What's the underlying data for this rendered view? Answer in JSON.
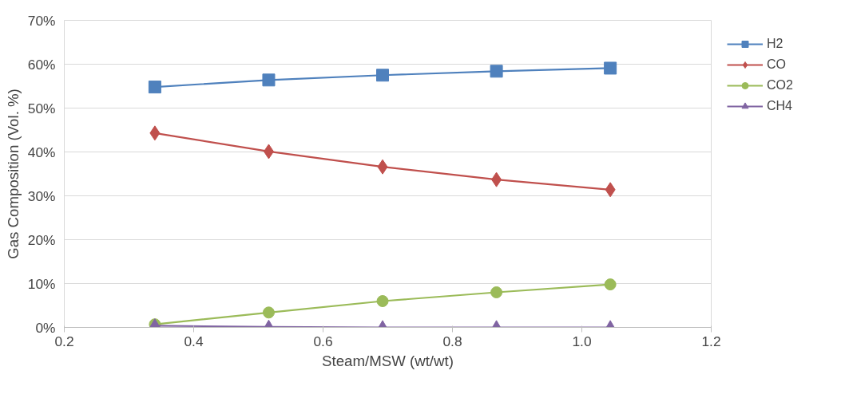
{
  "chart_data": {
    "type": "line",
    "xlabel": "Steam/MSW (wt/wt)",
    "ylabel": "Gas Composition (Vol. %)",
    "x": [
      0.34,
      0.516,
      0.692,
      0.868,
      1.044
    ],
    "series": [
      {
        "name": "H2",
        "color": "#4f81bd",
        "marker": "square",
        "values": [
          54.8,
          56.4,
          57.5,
          58.4,
          59.1
        ]
      },
      {
        "name": "CO",
        "color": "#c0504d",
        "marker": "diamond",
        "values": [
          44.3,
          40.1,
          36.6,
          33.7,
          31.4
        ]
      },
      {
        "name": "CO2",
        "color": "#9bbb59",
        "marker": "circle",
        "values": [
          0.7,
          3.4,
          6.0,
          8.0,
          9.8
        ]
      },
      {
        "name": "CH4",
        "color": "#8064a2",
        "marker": "triangle",
        "values": [
          0.4,
          0.1,
          0,
          0,
          0
        ]
      }
    ],
    "xlim": [
      0.2,
      1.2
    ],
    "xticks": [
      0.2,
      0.4,
      0.6,
      0.8,
      {
        "value": 1,
        "label": "1.0"
      },
      1.2
    ],
    "ylim": [
      0,
      70
    ],
    "yticks": [
      {
        "value": 0,
        "label": "0%"
      },
      {
        "value": 10,
        "label": "10%"
      },
      {
        "value": 20,
        "label": "20%"
      },
      {
        "value": 30,
        "label": "30%"
      },
      {
        "value": 40,
        "label": "40%"
      },
      {
        "value": 50,
        "label": "50%"
      },
      {
        "value": 60,
        "label": "60%"
      },
      {
        "value": 70,
        "label": "70%"
      }
    ],
    "grid": "y",
    "legend": "right",
    "line_style": "solid"
  }
}
